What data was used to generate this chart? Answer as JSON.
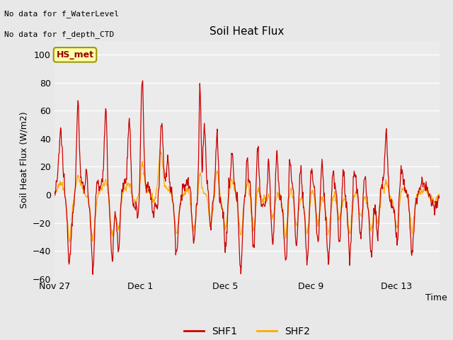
{
  "title": "Soil Heat Flux",
  "ylabel": "Soil Heat Flux (W/m2)",
  "xlabel": "Time",
  "ylim": [
    -60,
    110
  ],
  "yticks": [
    -60,
    -40,
    -20,
    0,
    20,
    40,
    60,
    80,
    100
  ],
  "xtick_labels": [
    "Nov 27",
    "Dec 1",
    "Dec 5",
    "Dec 9",
    "Dec 13"
  ],
  "xtick_positions_days": [
    0,
    4,
    8,
    12,
    16
  ],
  "note_line1": "No data for f_WaterLevel",
  "note_line2": "No data for f_depth_CTD",
  "annotation_label": "HS_met",
  "shf1_color": "#cc0000",
  "shf2_color": "#ffaa00",
  "legend_shf1": "SHF1",
  "legend_shf2": "SHF2",
  "background_color": "#e8e8e8",
  "plot_bg_color": "#ebebeb",
  "grid_color": "#ffffff",
  "n_days": 18,
  "figwidth": 6.4,
  "figheight": 4.8,
  "dpi": 100
}
